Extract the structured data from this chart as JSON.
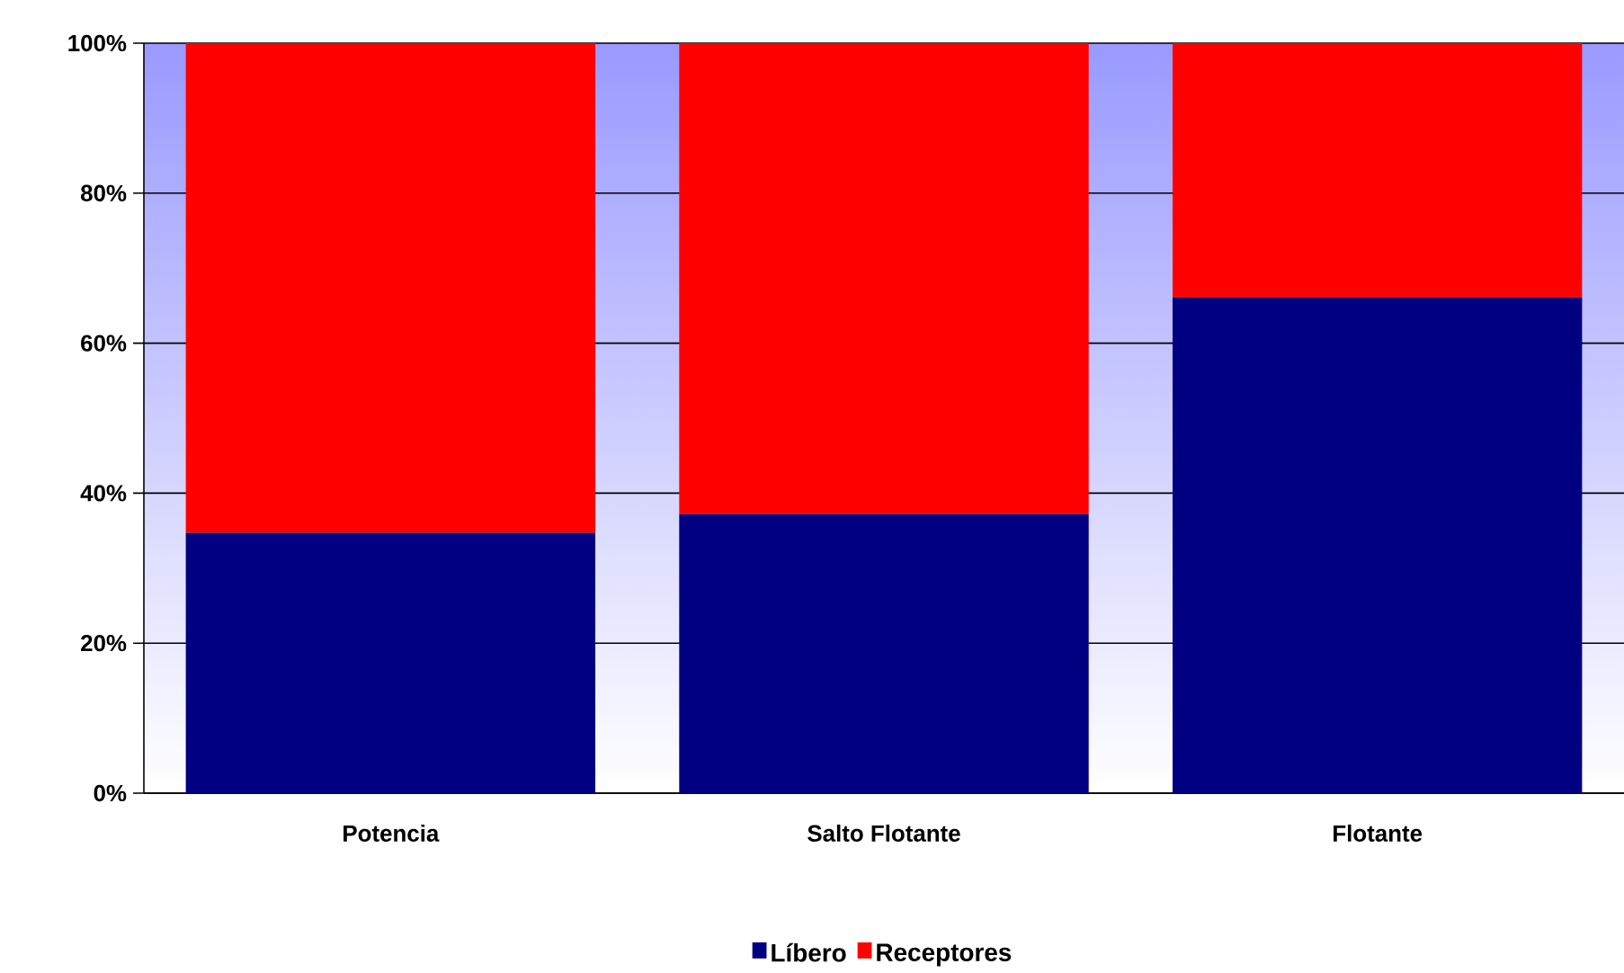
{
  "chart_data": {
    "type": "bar",
    "stacked": true,
    "categories": [
      "Potencia",
      "Salto Flotante",
      "Flotante"
    ],
    "series": [
      {
        "name": "Líbero",
        "color": "#000080",
        "values": [
          34.7,
          37.2,
          66.1
        ]
      },
      {
        "name": "Receptores",
        "color": "#ff0000",
        "values": [
          65.3,
          62.8,
          33.9
        ]
      }
    ],
    "ylim": [
      0,
      100
    ],
    "yticks": [
      {
        "value": 0,
        "label": "0%"
      },
      {
        "value": 20,
        "label": "20%"
      },
      {
        "value": 40,
        "label": "40%"
      },
      {
        "value": 60,
        "label": "60%"
      },
      {
        "value": 80,
        "label": "80%"
      },
      {
        "value": 100,
        "label": "100%"
      }
    ],
    "grid": "y",
    "legend": "bottom"
  }
}
